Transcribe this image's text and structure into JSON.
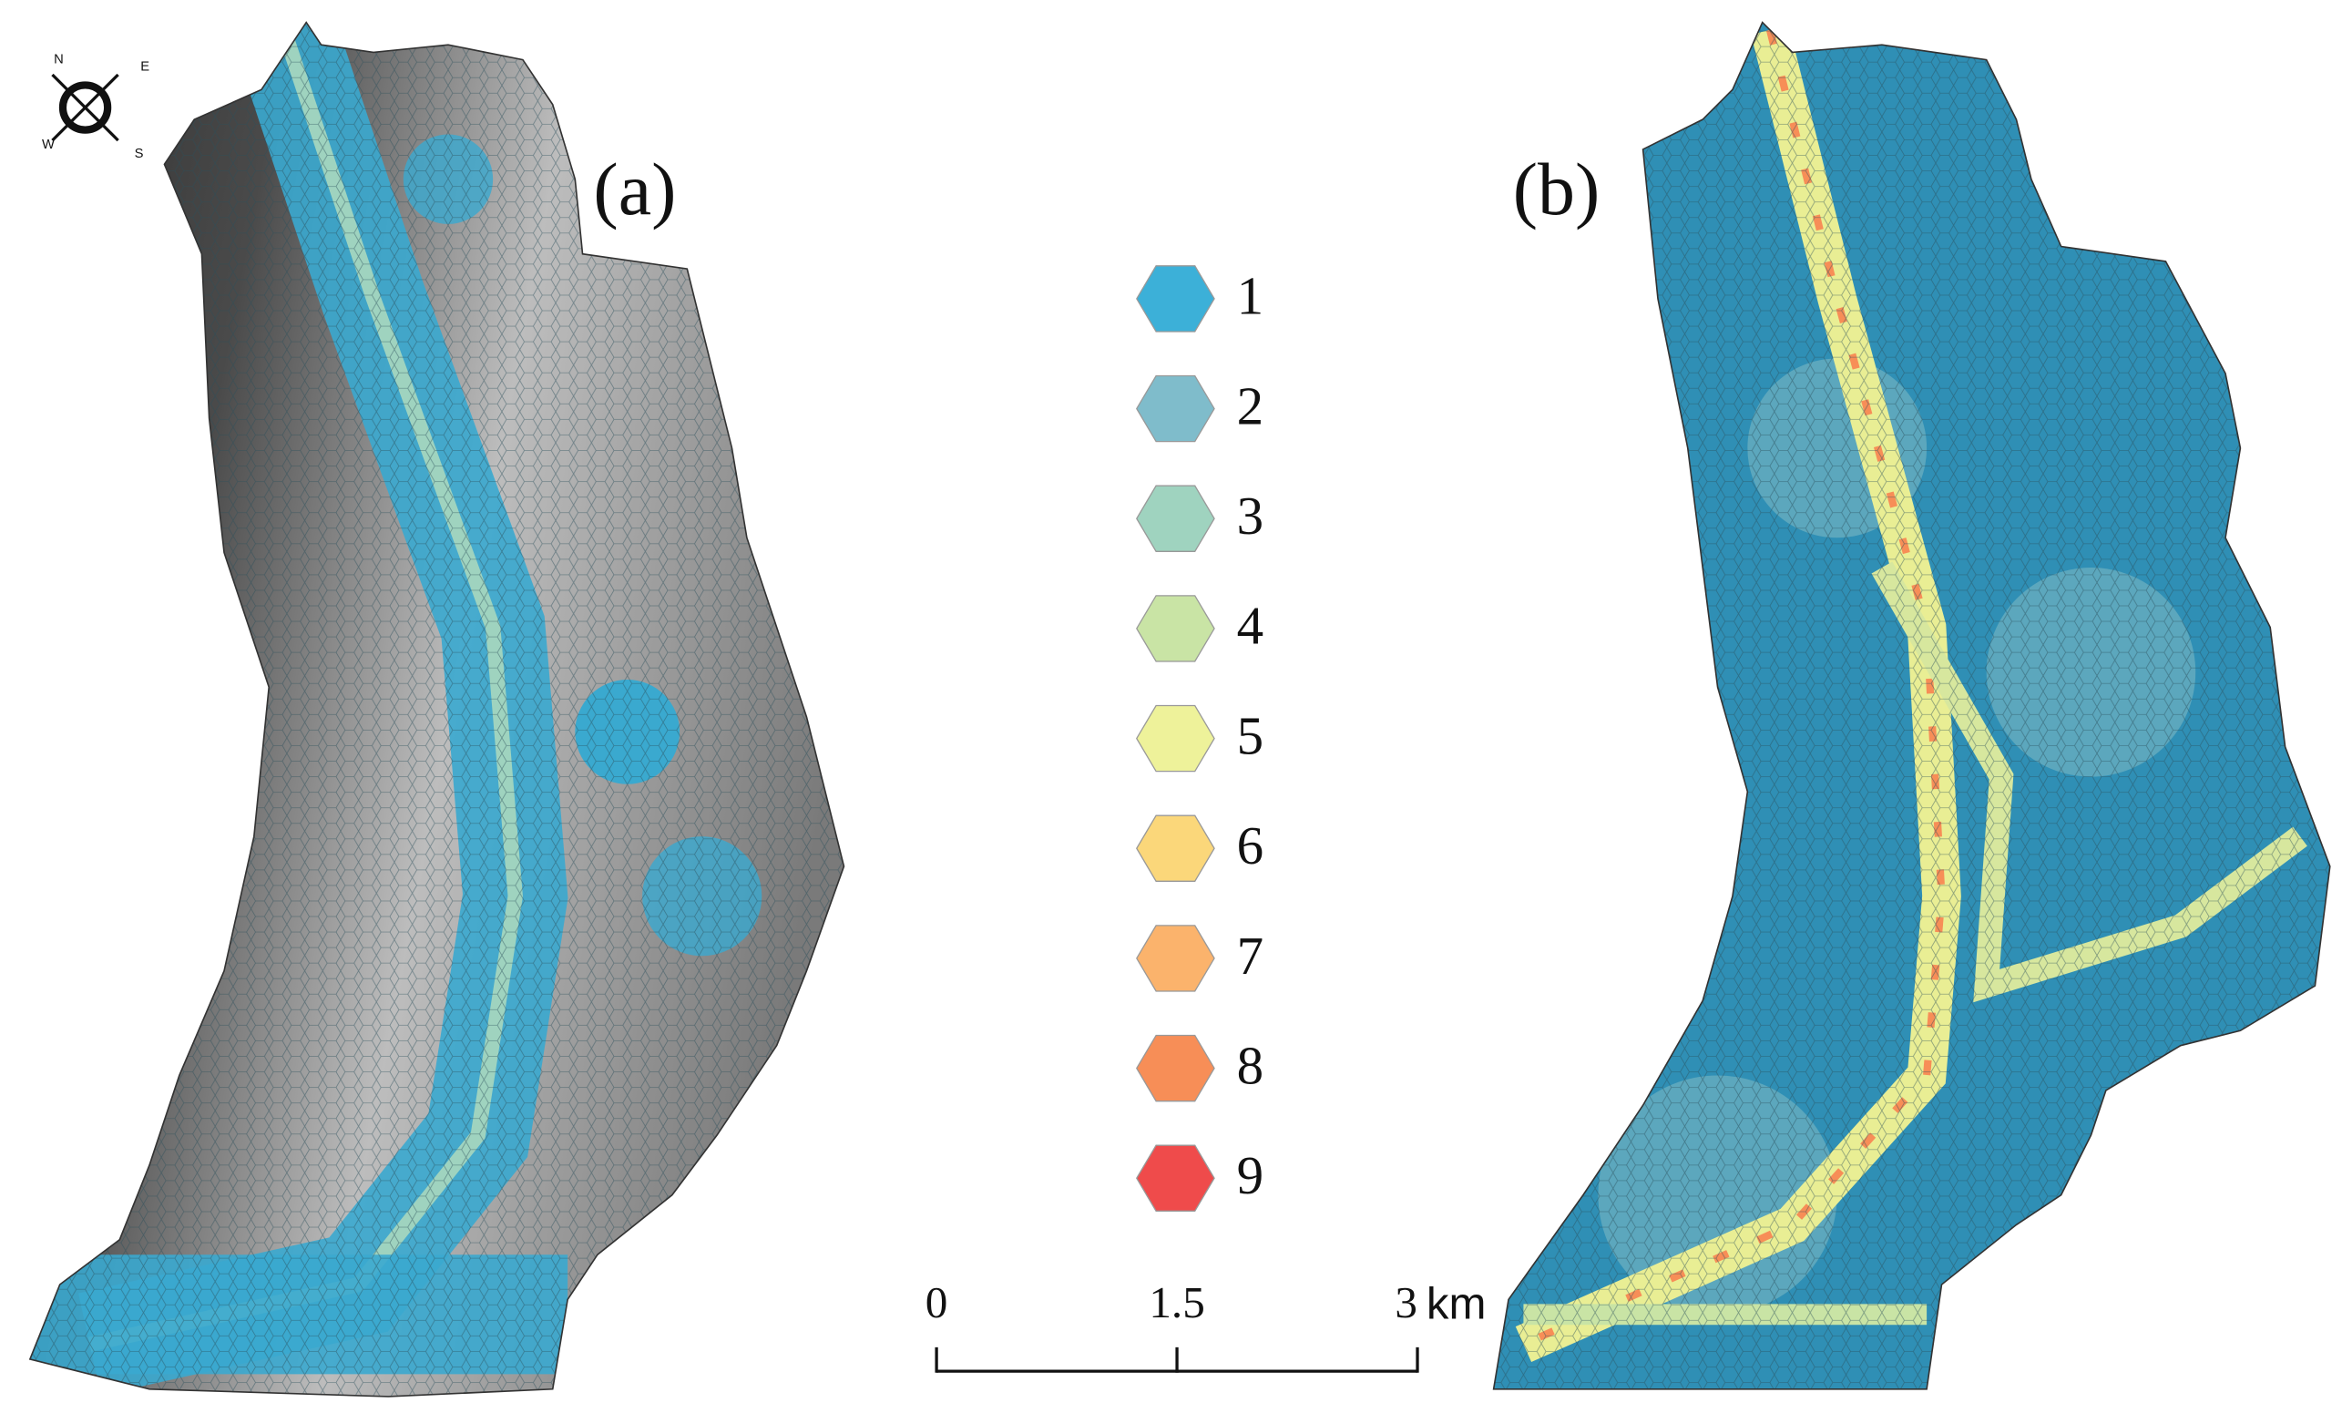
{
  "panels": [
    {
      "label": "(a)"
    },
    {
      "label": "(b)"
    }
  ],
  "legend": {
    "items": [
      {
        "label": "1",
        "color": "#3cb0d8"
      },
      {
        "label": "2",
        "color": "#7fbccb"
      },
      {
        "label": "3",
        "color": "#9fd3bf"
      },
      {
        "label": "4",
        "color": "#c9e4a5"
      },
      {
        "label": "5",
        "color": "#eef29a"
      },
      {
        "label": "6",
        "color": "#fbd77a"
      },
      {
        "label": "7",
        "color": "#fbb36c"
      },
      {
        "label": "8",
        "color": "#f78e57"
      },
      {
        "label": "9",
        "color": "#ef4b4b"
      }
    ]
  },
  "scale_bar": {
    "ticks": [
      0,
      1.5,
      3
    ],
    "unit": "km"
  },
  "compass": {
    "labels": [
      "N",
      "E",
      "S",
      "W"
    ]
  }
}
